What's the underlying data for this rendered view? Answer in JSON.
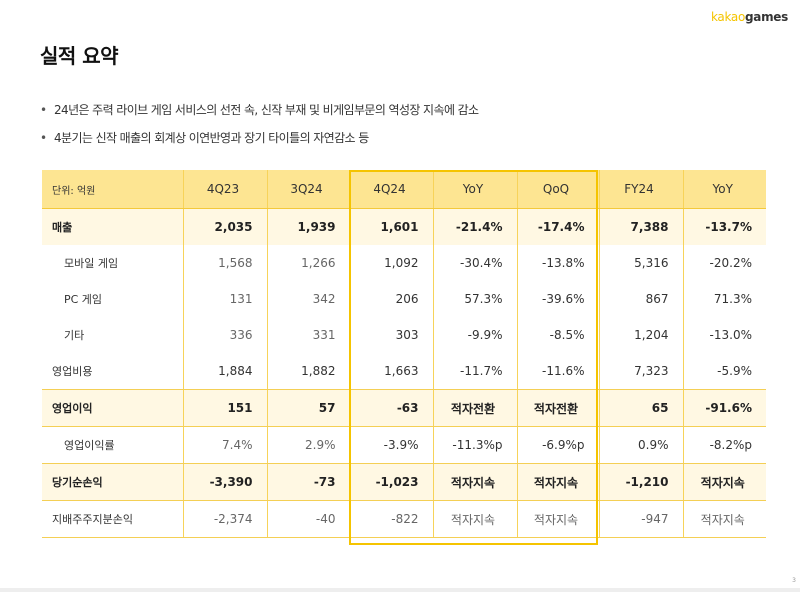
{
  "header": {
    "logo_part1": "kakao",
    "logo_part2": "games",
    "title": "실적 요약"
  },
  "bullets": [
    "24년은 주력 라이브 게임 서비스의 선전 속, 신작 부재 및 비게임부문의 역성장 지속에 감소",
    "4분기는 신작 매출의 회계상 이연반영과 장기 타이틀의 자연감소 등"
  ],
  "bullet_symbol": "•",
  "table": {
    "unit": "단위: 억원",
    "columns": [
      "4Q23",
      "3Q24",
      "4Q24",
      "YoY",
      "QoQ",
      "FY24",
      "YoY"
    ],
    "highlighted_columns": [
      "4Q24",
      "YoY",
      "QoQ"
    ],
    "rows": [
      {
        "label": "매출",
        "values": [
          "2,035",
          "1,939",
          "1,601",
          "-21.4%",
          "-17.4%",
          "7,388",
          "-13.7%"
        ]
      },
      {
        "label": "모바일 게임",
        "values": [
          "1,568",
          "1,266",
          "1,092",
          "-30.4%",
          "-13.8%",
          "5,316",
          "-20.2%"
        ]
      },
      {
        "label": "PC 게임",
        "values": [
          "131",
          "342",
          "206",
          "57.3%",
          "-39.6%",
          "867",
          "71.3%"
        ]
      },
      {
        "label": "기타",
        "values": [
          "336",
          "331",
          "303",
          "-9.9%",
          "-8.5%",
          "1,204",
          "-13.0%"
        ]
      },
      {
        "label": "영업비용",
        "values": [
          "1,884",
          "1,882",
          "1,663",
          "-11.7%",
          "-11.6%",
          "7,323",
          "-5.9%"
        ]
      },
      {
        "label": "영업이익",
        "values": [
          "151",
          "57",
          "-63",
          "적자전환",
          "적자전환",
          "65",
          "-91.6%"
        ]
      },
      {
        "label": "영업이익률",
        "values": [
          "7.4%",
          "2.9%",
          "-3.9%",
          "-11.3%p",
          "-6.9%p",
          "0.9%",
          "-8.2%p"
        ]
      },
      {
        "label": "당기순손익",
        "values": [
          "-3,390",
          "-73",
          "-1,023",
          "적자지속",
          "적자지속",
          "-1,210",
          "적자지속"
        ]
      },
      {
        "label": "지배주주지분손익",
        "values": [
          "-2,374",
          "-40",
          "-822",
          "적자지속",
          "적자지속",
          "-947",
          "적자지속"
        ]
      }
    ]
  },
  "colors": {
    "accent": "#f5c400",
    "header_bg": "#fde592",
    "shaded_row_bg": "#fff8e3"
  },
  "page_number": "3"
}
